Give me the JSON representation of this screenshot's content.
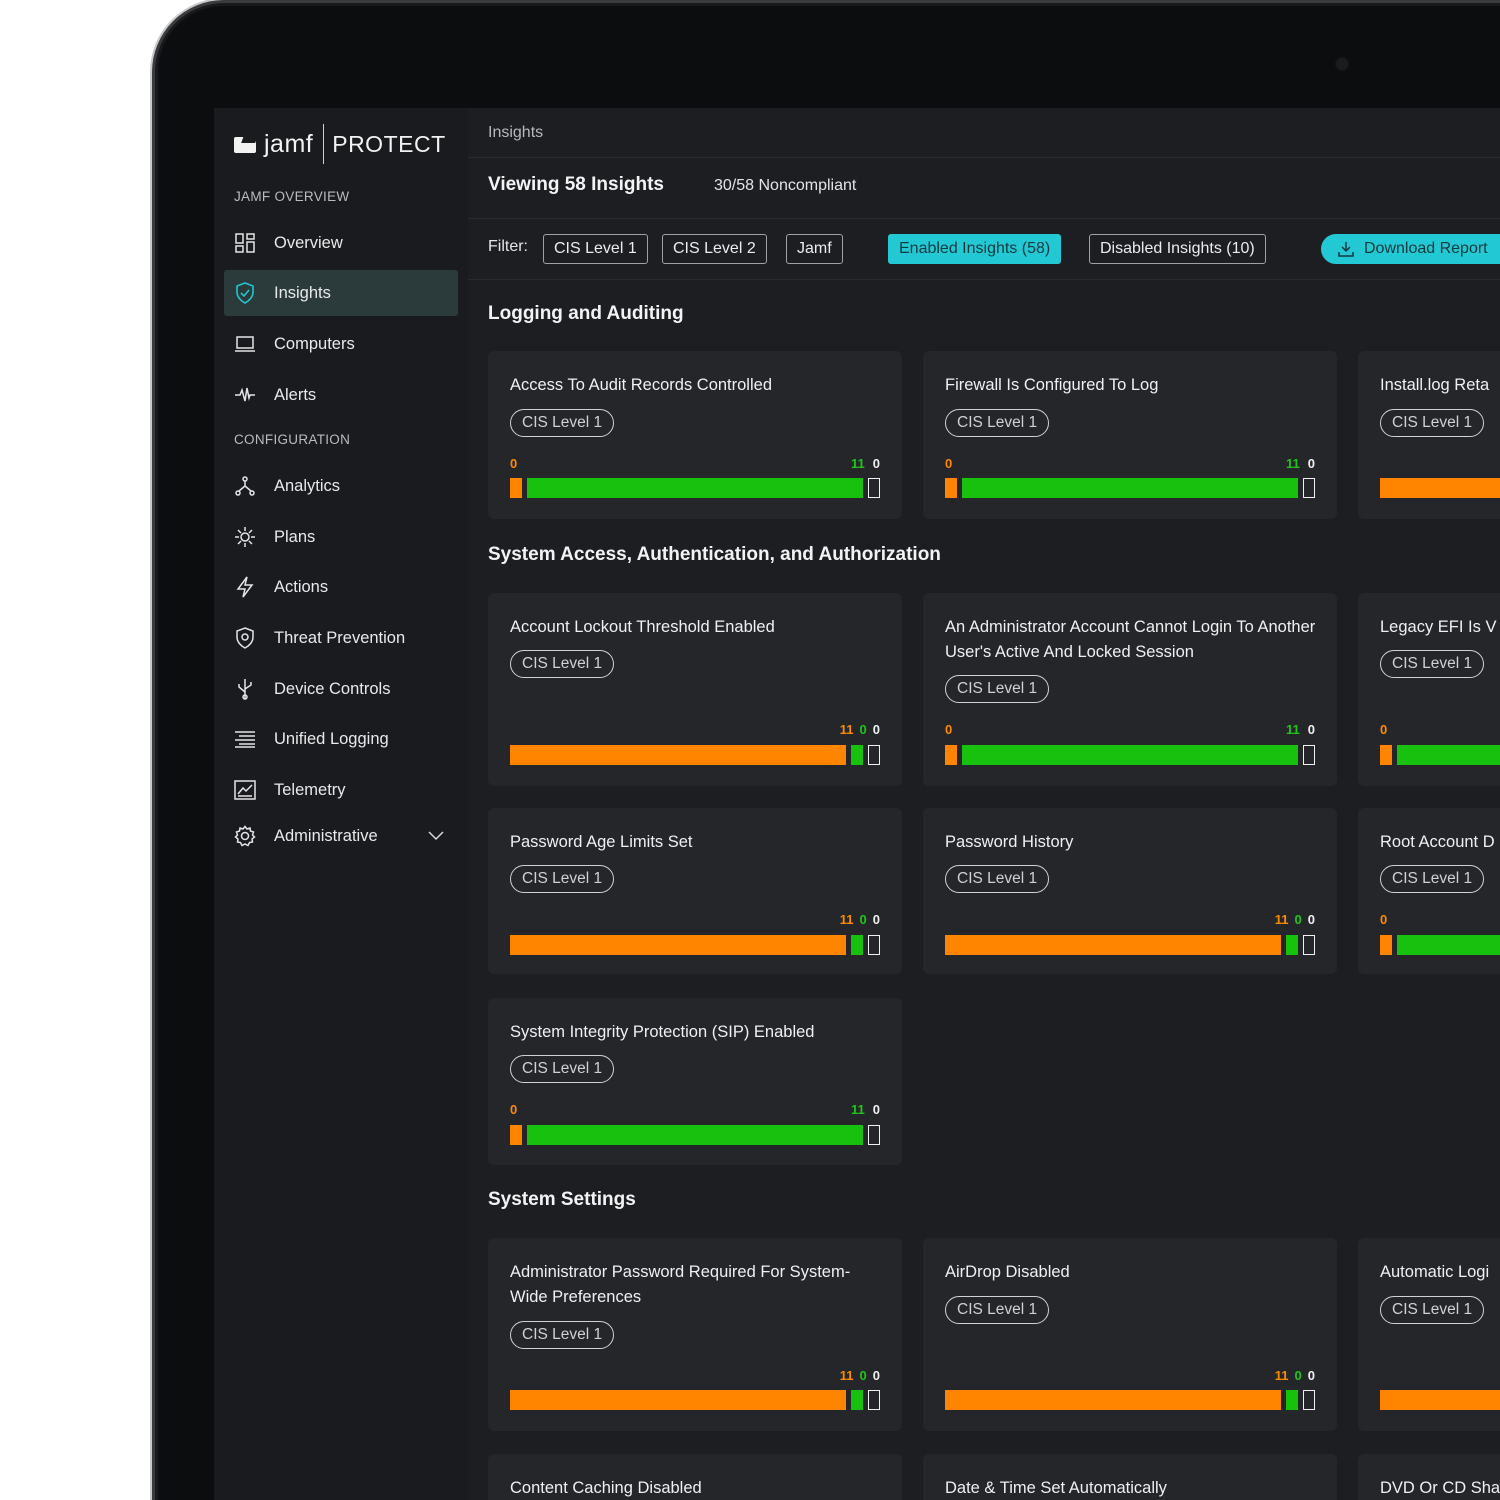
{
  "app": {
    "logo_word": "jamf",
    "product": "PROTECT"
  },
  "sidebar": {
    "sections": [
      "JAMF OVERVIEW",
      "CONFIGURATION"
    ],
    "items": [
      {
        "label": "Overview",
        "icon": "grid-icon"
      },
      {
        "label": "Insights",
        "icon": "shield-check-icon",
        "active": true
      },
      {
        "label": "Computers",
        "icon": "laptop-icon"
      },
      {
        "label": "Alerts",
        "icon": "pulse-icon"
      },
      {
        "label": "Analytics",
        "icon": "analytics-icon"
      },
      {
        "label": "Plans",
        "icon": "plans-gear-icon"
      },
      {
        "label": "Actions",
        "icon": "lightning-icon"
      },
      {
        "label": "Threat Prevention",
        "icon": "shield-target-icon"
      },
      {
        "label": "Device Controls",
        "icon": "usb-icon"
      },
      {
        "label": "Unified Logging",
        "icon": "logging-icon"
      },
      {
        "label": "Telemetry",
        "icon": "chart-window-icon"
      },
      {
        "label": "Administrative",
        "icon": "gear-icon"
      }
    ]
  },
  "header": {
    "breadcrumb": "Insights",
    "viewing": "Viewing 58 Insights",
    "noncompliant": "30/58 Noncompliant"
  },
  "filters": {
    "label": "Filter:",
    "chips": [
      "CIS Level 1",
      "CIS Level 2",
      "Jamf"
    ],
    "enabled": "Enabled Insights (58)",
    "disabled": "Disabled Insights (10)",
    "download": "Download Report"
  },
  "sections": [
    {
      "title": "Logging and Auditing",
      "cards": [
        {
          "title": "Access To Audit Records Controlled",
          "badge": "CIS Level 1",
          "counts": {
            "noncompliant": "0",
            "compliant": "11",
            "na": "0"
          }
        },
        {
          "title": "Firewall Is Configured To Log",
          "badge": "CIS Level 1",
          "counts": {
            "noncompliant": "0",
            "compliant": "11",
            "na": "0"
          }
        },
        {
          "title": "Install.log Reta",
          "badge": "CIS Level 1",
          "counts": {
            "noncompliant": "",
            "compliant": "",
            "na": ""
          }
        }
      ]
    },
    {
      "title": "System Access, Authentication, and Authorization",
      "cards": [
        {
          "title": "Account Lockout Threshold Enabled",
          "badge": "CIS Level 1",
          "counts": {
            "noncompliant": "11",
            "compliant": "0",
            "na": "0"
          }
        },
        {
          "title": "An Administrator Account Cannot Login To Another User's Active And Locked Session",
          "badge": "CIS Level 1",
          "counts": {
            "noncompliant": "0",
            "compliant": "11",
            "na": "0"
          }
        },
        {
          "title": "Legacy EFI Is V",
          "badge": "CIS Level 1",
          "counts": {
            "noncompliant": "0",
            "compliant": "",
            "na": ""
          }
        },
        {
          "title": "Password Age Limits Set",
          "badge": "CIS Level 1",
          "counts": {
            "noncompliant": "11",
            "compliant": "0",
            "na": "0"
          }
        },
        {
          "title": "Password History",
          "badge": "CIS Level 1",
          "counts": {
            "noncompliant": "11",
            "compliant": "0",
            "na": "0"
          }
        },
        {
          "title": "Root Account D",
          "badge": "CIS Level 1",
          "counts": {
            "noncompliant": "0",
            "compliant": "",
            "na": ""
          }
        },
        {
          "title": "System Integrity Protection (SIP) Enabled",
          "badge": "CIS Level 1",
          "counts": {
            "noncompliant": "0",
            "compliant": "11",
            "na": "0"
          }
        }
      ]
    },
    {
      "title": "System Settings",
      "cards": [
        {
          "title": "Administrator Password Required For System-Wide Preferences",
          "badge": "CIS Level 1",
          "counts": {
            "noncompliant": "11",
            "compliant": "0",
            "na": "0"
          }
        },
        {
          "title": "AirDrop Disabled",
          "badge": "CIS Level 1",
          "counts": {
            "noncompliant": "11",
            "compliant": "0",
            "na": "0"
          }
        },
        {
          "title": "Automatic Logi",
          "badge": "CIS Level 1",
          "counts": {
            "noncompliant": "",
            "compliant": "",
            "na": ""
          }
        },
        {
          "title": "Content Caching Disabled",
          "badge": "",
          "counts": {}
        },
        {
          "title": "Date & Time Set Automatically",
          "badge": "",
          "counts": {}
        },
        {
          "title": "DVD Or CD Sha",
          "badge": "",
          "counts": {}
        }
      ]
    }
  ],
  "colors": {
    "noncompliant": "#ff8400",
    "compliant": "#19c10f",
    "accent": "#22c9d4"
  }
}
